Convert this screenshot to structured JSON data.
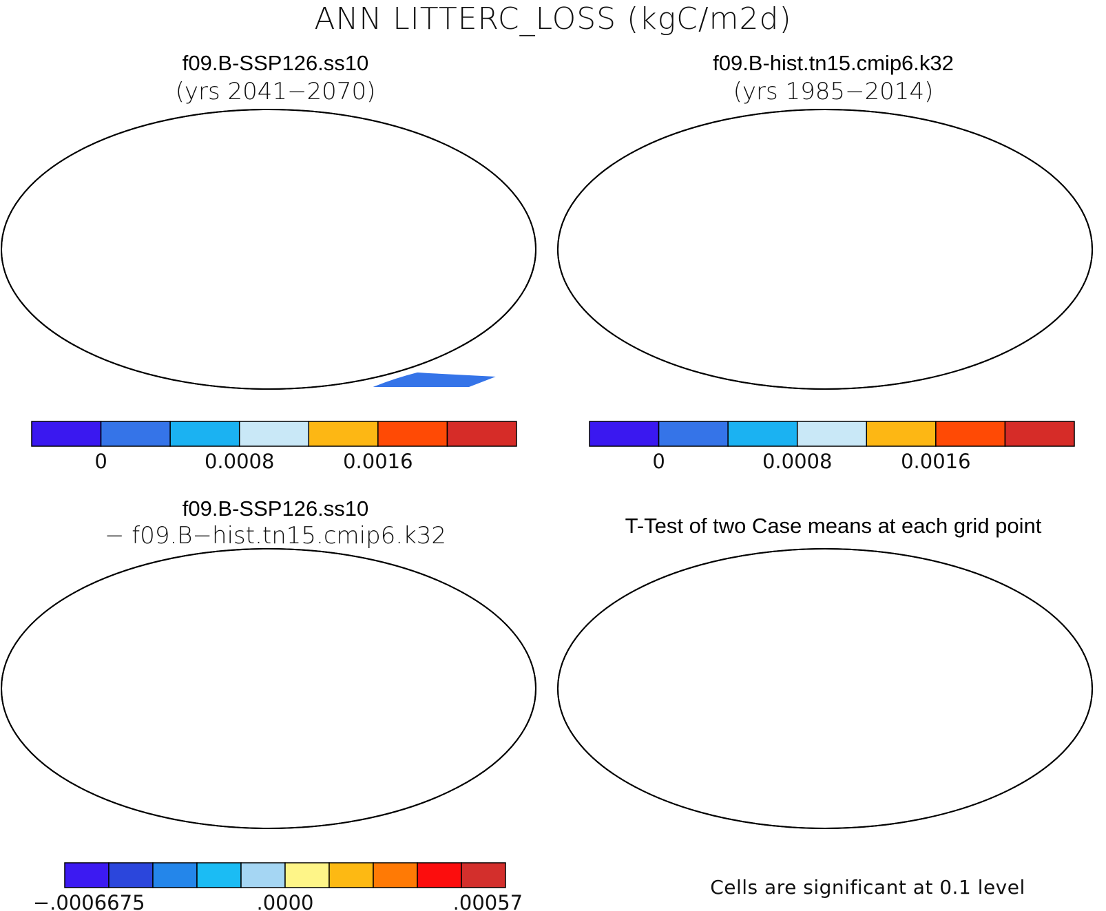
{
  "figure": {
    "title": "ANN LITTERC_LOSS (kgC/m2d)"
  },
  "panels": [
    {
      "id": "case1",
      "title": "f09.B-SSP126.ss10",
      "subtitle": "(yrs 2041−2070)"
    },
    {
      "id": "case2",
      "title": "f09.B-hist.tn15.cmip6.k32",
      "subtitle": "(yrs 1985−2014)"
    },
    {
      "id": "diff",
      "title": "f09.B-SSP126.ss10",
      "subtitle": "− f09.B−hist.tn15.cmip6.k32"
    },
    {
      "id": "ttest",
      "title": "T-Test of two Case means at each grid point",
      "footnote": "Cells are significant at 0.1 level"
    }
  ],
  "colorbars": {
    "absolute": {
      "colors": [
        "#3a18f0",
        "#3574e8",
        "#1bb2f2",
        "#c9e8f7",
        "#fdb714",
        "#ff4a05",
        "#d62c28"
      ],
      "labels": [
        "0",
        "0.0008",
        "0.0016"
      ]
    },
    "difference": {
      "colors": [
        "#3c1af2",
        "#2b46dc",
        "#2486ea",
        "#1bbcf4",
        "#a5d6f3",
        "#fef588",
        "#fdb913",
        "#ff7a05",
        "#fc0d0d",
        "#d32f2c"
      ],
      "labels": [
        ".0006675",
        ".0000",
        ".00057"
      ],
      "label_prefix": "−"
    }
  },
  "map_colors": {
    "ocean": "#ffffff",
    "coast": "#000000",
    "significant": "#ff1010"
  }
}
